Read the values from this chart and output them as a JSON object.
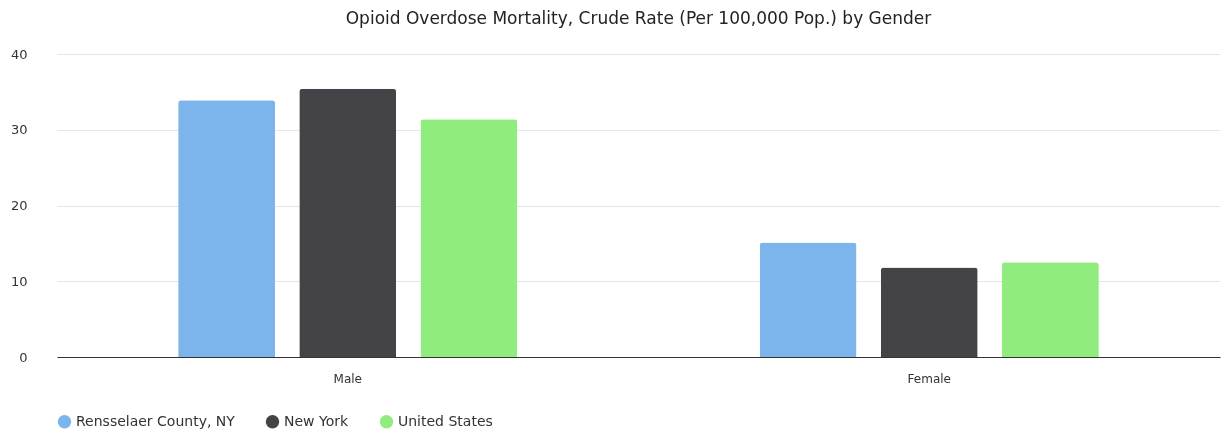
{
  "chart_data": {
    "type": "bar",
    "title": "Opioid Overdose Mortality, Crude Rate (Per 100,000 Pop.) by Gender",
    "categories": [
      "Male",
      "Female"
    ],
    "series": [
      {
        "name": "Rensselaer County, NY",
        "color": "#7cb5ec",
        "values": [
          33.9,
          15.1
        ]
      },
      {
        "name": "New York",
        "color": "#434348",
        "values": [
          35.4,
          11.8
        ]
      },
      {
        "name": "United States",
        "color": "#90ed7d",
        "values": [
          31.4,
          12.5
        ]
      }
    ],
    "ylim": [
      0,
      40
    ],
    "yticks": [
      0,
      10,
      20,
      30,
      40
    ],
    "grid": "y",
    "legend": "bottom"
  }
}
